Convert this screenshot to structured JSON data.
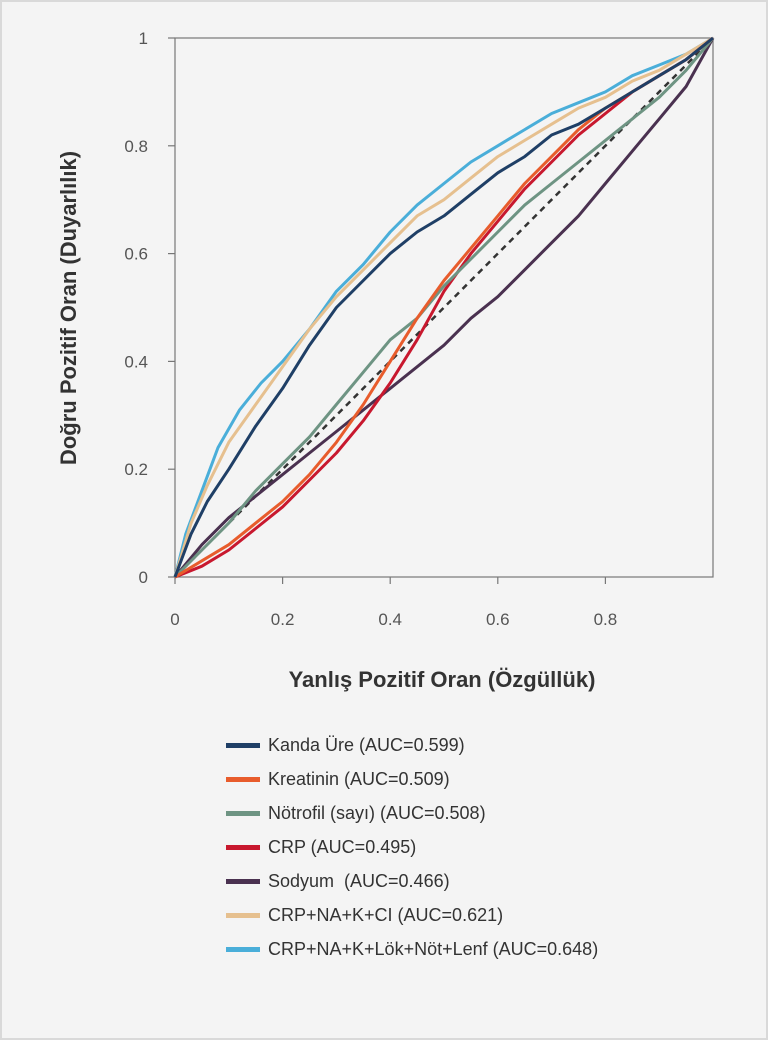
{
  "chart_data": {
    "type": "line",
    "xlabel": "Yanlış Pozitif Oran (Özgüllük)",
    "ylabel": "Doğru Pozitif Oran (Duyarlılık)",
    "xlim": [
      0,
      1
    ],
    "ylim": [
      0,
      1
    ],
    "x_ticks": [
      "0",
      "0.2",
      "0.4",
      "0.6",
      "0.8"
    ],
    "y_ticks": [
      "0",
      "0.2",
      "0.4",
      "0.6",
      "0.8",
      "1"
    ],
    "grid": false,
    "legend_position": "bottom",
    "reference_line": {
      "style": "dashed",
      "color": "#333333",
      "points": [
        [
          0,
          0
        ],
        [
          1,
          1
        ]
      ]
    },
    "series": [
      {
        "name": "Kanda Üre (AUC=0.599)",
        "color": "#1f3f66",
        "points": [
          [
            0,
            0
          ],
          [
            0.03,
            0.08
          ],
          [
            0.06,
            0.14
          ],
          [
            0.1,
            0.2
          ],
          [
            0.15,
            0.28
          ],
          [
            0.2,
            0.35
          ],
          [
            0.25,
            0.43
          ],
          [
            0.3,
            0.5
          ],
          [
            0.35,
            0.55
          ],
          [
            0.4,
            0.6
          ],
          [
            0.45,
            0.64
          ],
          [
            0.5,
            0.67
          ],
          [
            0.55,
            0.71
          ],
          [
            0.6,
            0.75
          ],
          [
            0.65,
            0.78
          ],
          [
            0.7,
            0.82
          ],
          [
            0.75,
            0.84
          ],
          [
            0.8,
            0.87
          ],
          [
            0.85,
            0.9
          ],
          [
            0.9,
            0.93
          ],
          [
            0.95,
            0.96
          ],
          [
            1,
            1
          ]
        ]
      },
      {
        "name": "Kreatinin (AUC=0.509)",
        "color": "#e85c2c",
        "points": [
          [
            0,
            0
          ],
          [
            0.05,
            0.03
          ],
          [
            0.1,
            0.06
          ],
          [
            0.15,
            0.1
          ],
          [
            0.2,
            0.14
          ],
          [
            0.25,
            0.19
          ],
          [
            0.3,
            0.25
          ],
          [
            0.35,
            0.32
          ],
          [
            0.4,
            0.4
          ],
          [
            0.45,
            0.48
          ],
          [
            0.5,
            0.55
          ],
          [
            0.55,
            0.61
          ],
          [
            0.6,
            0.67
          ],
          [
            0.65,
            0.73
          ],
          [
            0.7,
            0.78
          ],
          [
            0.75,
            0.83
          ],
          [
            0.8,
            0.87
          ],
          [
            0.85,
            0.9
          ],
          [
            0.9,
            0.93
          ],
          [
            0.95,
            0.96
          ],
          [
            1,
            1
          ]
        ]
      },
      {
        "name": "Nötrofil (sayı) (AUC=0.508)",
        "color": "#6e9483",
        "points": [
          [
            0,
            0
          ],
          [
            0.05,
            0.05
          ],
          [
            0.1,
            0.1
          ],
          [
            0.15,
            0.16
          ],
          [
            0.2,
            0.21
          ],
          [
            0.25,
            0.26
          ],
          [
            0.3,
            0.32
          ],
          [
            0.35,
            0.38
          ],
          [
            0.4,
            0.44
          ],
          [
            0.45,
            0.48
          ],
          [
            0.5,
            0.54
          ],
          [
            0.55,
            0.59
          ],
          [
            0.6,
            0.64
          ],
          [
            0.65,
            0.69
          ],
          [
            0.7,
            0.73
          ],
          [
            0.75,
            0.77
          ],
          [
            0.8,
            0.81
          ],
          [
            0.85,
            0.85
          ],
          [
            0.9,
            0.89
          ],
          [
            0.95,
            0.94
          ],
          [
            1,
            1
          ]
        ]
      },
      {
        "name": "CRP (AUC=0.495)",
        "color": "#c8182e",
        "points": [
          [
            0,
            0
          ],
          [
            0.05,
            0.02
          ],
          [
            0.1,
            0.05
          ],
          [
            0.15,
            0.09
          ],
          [
            0.2,
            0.13
          ],
          [
            0.25,
            0.18
          ],
          [
            0.3,
            0.23
          ],
          [
            0.35,
            0.29
          ],
          [
            0.4,
            0.36
          ],
          [
            0.45,
            0.44
          ],
          [
            0.5,
            0.53
          ],
          [
            0.55,
            0.6
          ],
          [
            0.6,
            0.66
          ],
          [
            0.65,
            0.72
          ],
          [
            0.7,
            0.77
          ],
          [
            0.75,
            0.82
          ],
          [
            0.8,
            0.86
          ],
          [
            0.85,
            0.9
          ],
          [
            0.9,
            0.93
          ],
          [
            0.95,
            0.96
          ],
          [
            1,
            1
          ]
        ]
      },
      {
        "name": "Sodyum  (AUC=0.466)",
        "color": "#4a3150",
        "points": [
          [
            0,
            0
          ],
          [
            0.05,
            0.06
          ],
          [
            0.1,
            0.11
          ],
          [
            0.15,
            0.15
          ],
          [
            0.2,
            0.19
          ],
          [
            0.25,
            0.23
          ],
          [
            0.3,
            0.27
          ],
          [
            0.35,
            0.31
          ],
          [
            0.4,
            0.35
          ],
          [
            0.45,
            0.39
          ],
          [
            0.5,
            0.43
          ],
          [
            0.55,
            0.48
          ],
          [
            0.6,
            0.52
          ],
          [
            0.65,
            0.57
          ],
          [
            0.7,
            0.62
          ],
          [
            0.75,
            0.67
          ],
          [
            0.8,
            0.73
          ],
          [
            0.85,
            0.79
          ],
          [
            0.9,
            0.85
          ],
          [
            0.95,
            0.91
          ],
          [
            1,
            1
          ]
        ]
      },
      {
        "name": "CRP+NA+K+CI (AUC=0.621)",
        "color": "#e6c08f",
        "points": [
          [
            0,
            0
          ],
          [
            0.03,
            0.1
          ],
          [
            0.06,
            0.17
          ],
          [
            0.1,
            0.25
          ],
          [
            0.15,
            0.32
          ],
          [
            0.2,
            0.39
          ],
          [
            0.25,
            0.46
          ],
          [
            0.3,
            0.52
          ],
          [
            0.35,
            0.57
          ],
          [
            0.4,
            0.62
          ],
          [
            0.45,
            0.67
          ],
          [
            0.5,
            0.7
          ],
          [
            0.55,
            0.74
          ],
          [
            0.6,
            0.78
          ],
          [
            0.65,
            0.81
          ],
          [
            0.7,
            0.84
          ],
          [
            0.75,
            0.87
          ],
          [
            0.8,
            0.89
          ],
          [
            0.85,
            0.92
          ],
          [
            0.9,
            0.94
          ],
          [
            0.95,
            0.97
          ],
          [
            1,
            1
          ]
        ]
      },
      {
        "name": "CRP+NA+K+Lök+Nöt+Lenf (AUC=0.648)",
        "color": "#4aaed9",
        "points": [
          [
            0,
            0
          ],
          [
            0.02,
            0.08
          ],
          [
            0.05,
            0.16
          ],
          [
            0.08,
            0.24
          ],
          [
            0.12,
            0.31
          ],
          [
            0.16,
            0.36
          ],
          [
            0.2,
            0.4
          ],
          [
            0.25,
            0.46
          ],
          [
            0.3,
            0.53
          ],
          [
            0.35,
            0.58
          ],
          [
            0.4,
            0.64
          ],
          [
            0.45,
            0.69
          ],
          [
            0.5,
            0.73
          ],
          [
            0.55,
            0.77
          ],
          [
            0.6,
            0.8
          ],
          [
            0.65,
            0.83
          ],
          [
            0.7,
            0.86
          ],
          [
            0.75,
            0.88
          ],
          [
            0.8,
            0.9
          ],
          [
            0.85,
            0.93
          ],
          [
            0.9,
            0.95
          ],
          [
            0.95,
            0.97
          ],
          [
            1,
            1
          ]
        ]
      }
    ]
  }
}
